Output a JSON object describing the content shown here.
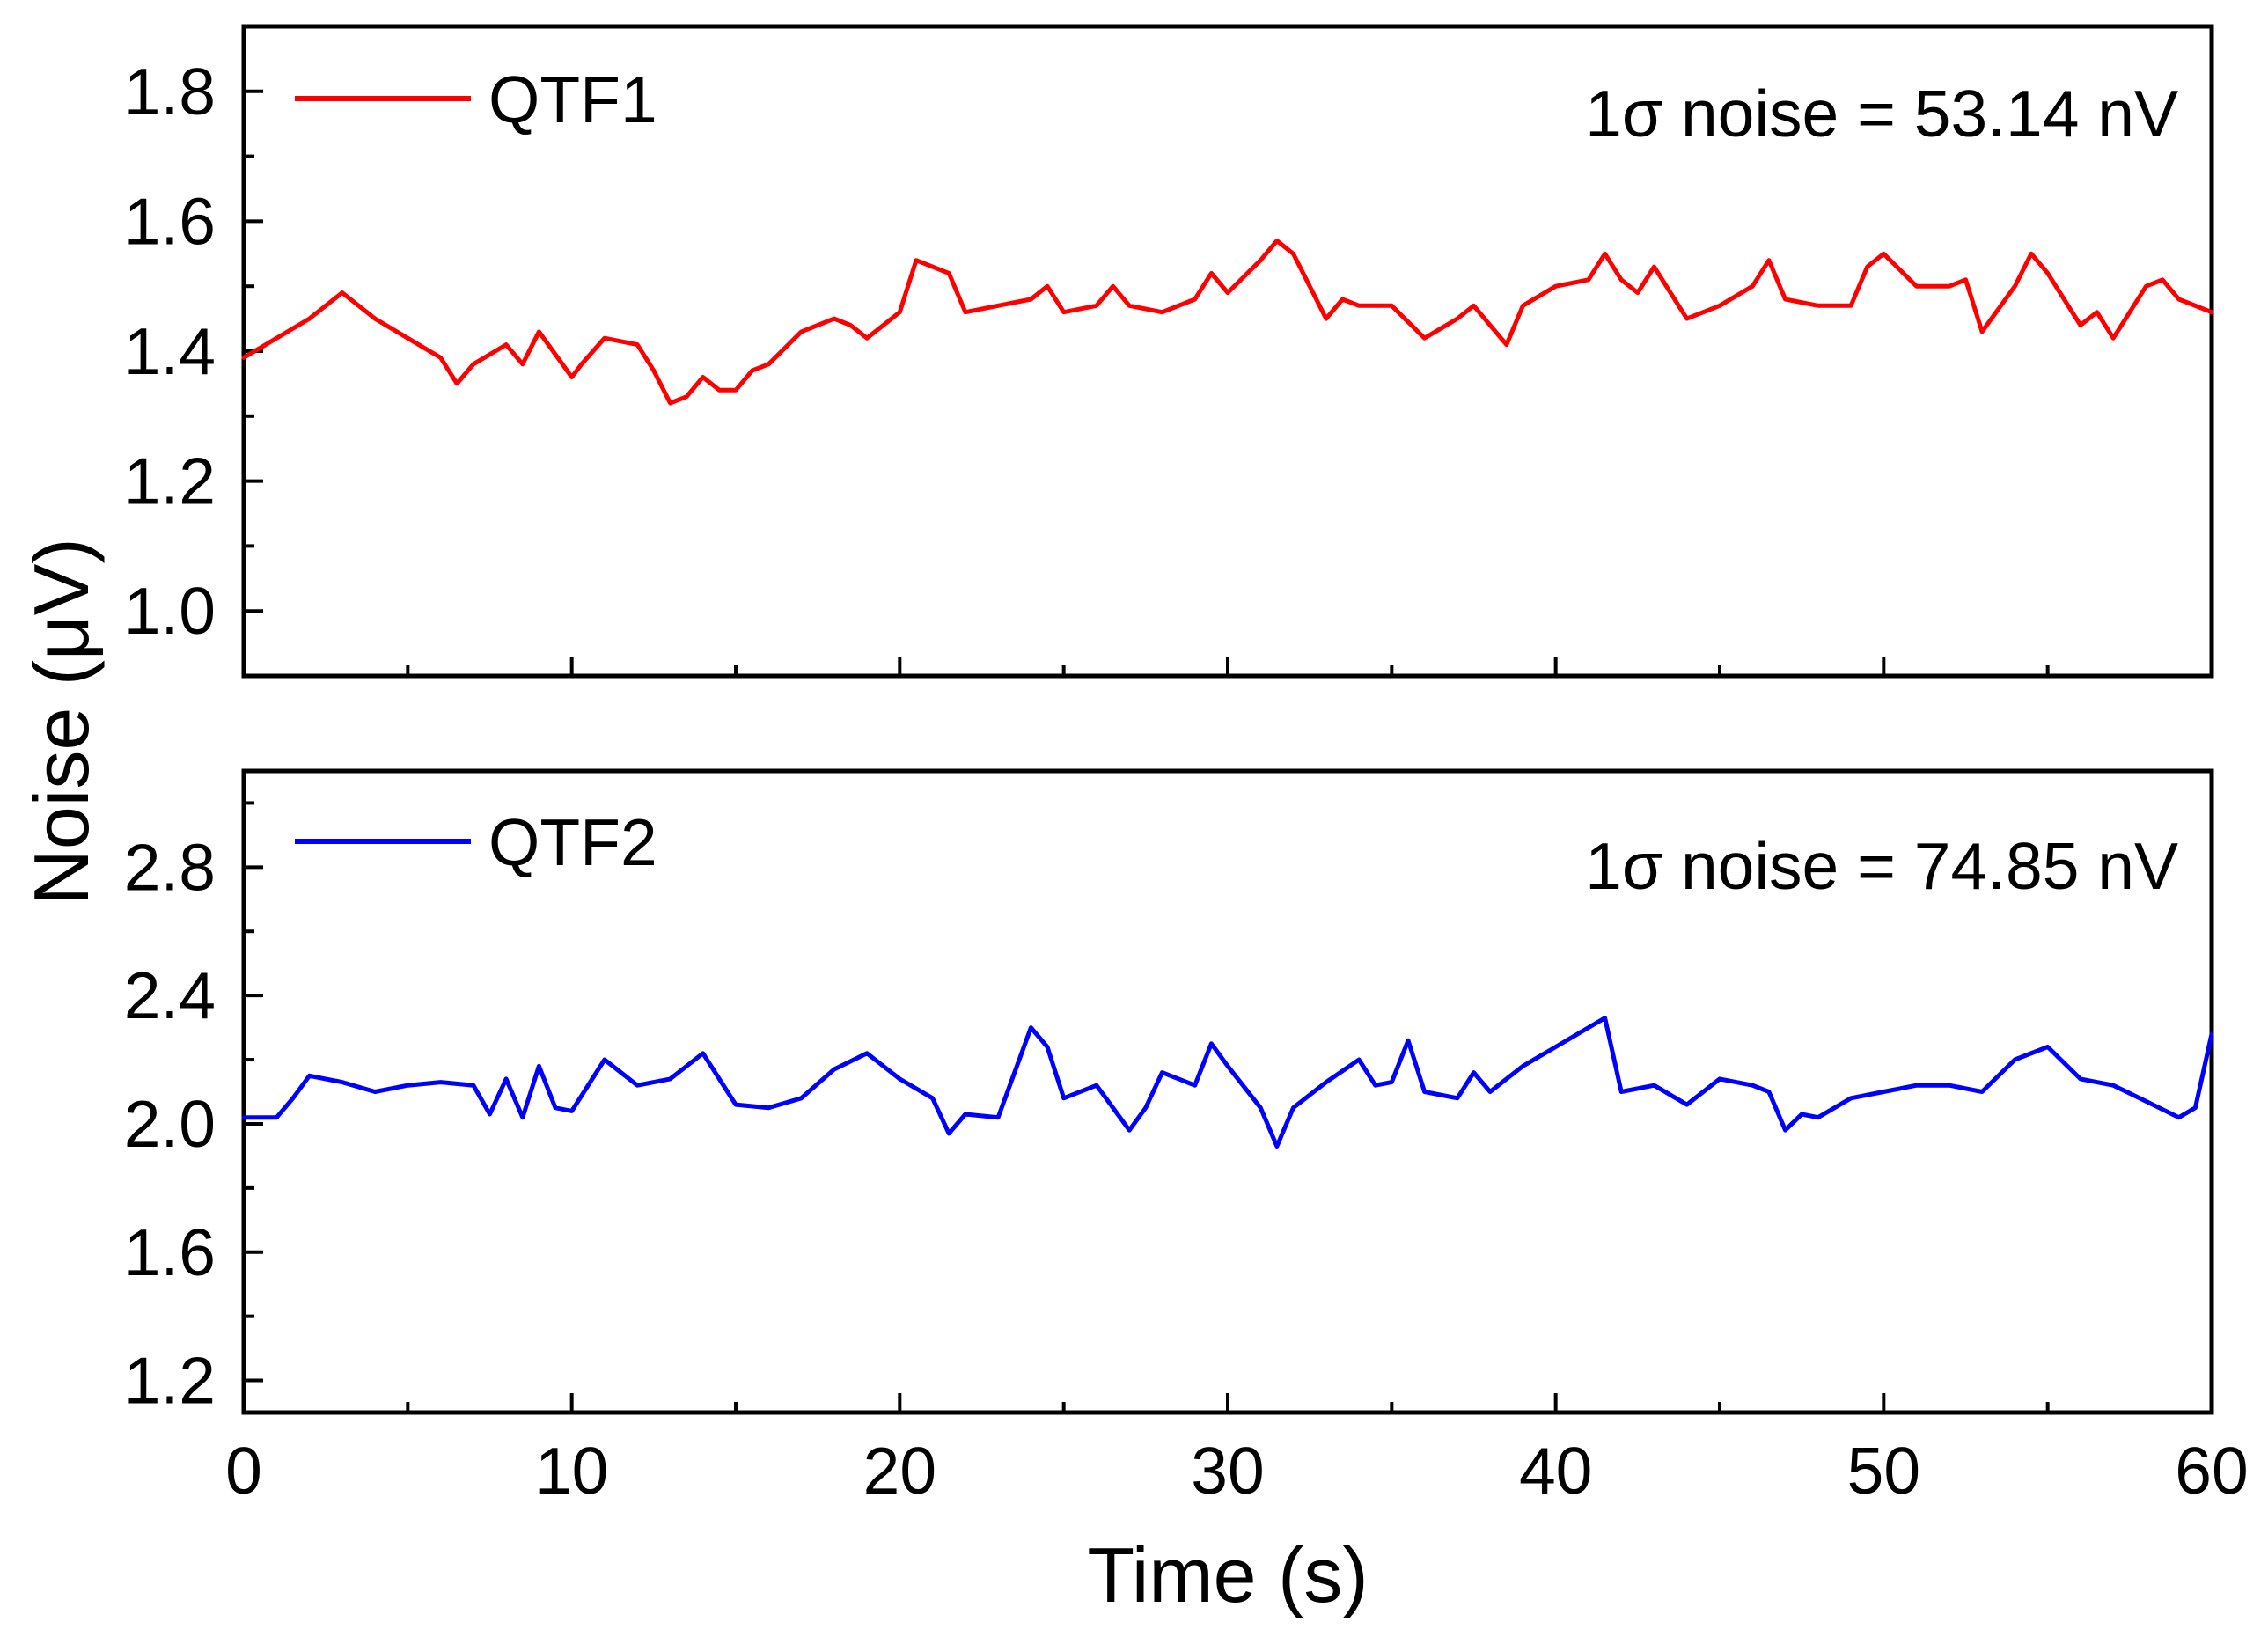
{
  "chart_data": [
    {
      "type": "line",
      "xlabel": "Time (s)",
      "ylabel": "Noise (μV)",
      "xlim": [
        0,
        60
      ],
      "ylim": [
        0.9,
        1.9
      ],
      "xticks": [
        0,
        10,
        20,
        30,
        40,
        50,
        60
      ],
      "yticks": [
        1.0,
        1.2,
        1.4,
        1.6,
        1.8
      ],
      "ytick_labels": [
        "1.0",
        "1.2",
        "1.4",
        "1.6",
        "1.8"
      ],
      "show_x_tick_labels": false,
      "grid": false,
      "legend_placement": "top-left",
      "annotation": "1σ noise = 53.14 nV",
      "series": [
        {
          "name": "QTF1",
          "color": "#ff0000",
          "x": [
            0,
            1,
            2,
            3,
            4,
            5,
            6,
            6.5,
            7,
            8,
            8.5,
            9,
            10,
            10.3,
            11,
            12,
            12.5,
            13,
            13.5,
            14,
            14.5,
            15,
            15.5,
            16,
            17,
            18,
            18.5,
            19,
            20,
            20.5,
            21,
            21.5,
            22,
            23,
            24,
            24.5,
            25,
            26,
            26.5,
            27,
            28,
            29,
            29.5,
            30,
            31,
            31.5,
            32,
            33,
            33.5,
            34,
            35,
            36,
            37,
            37.5,
            38,
            38.5,
            39,
            40,
            41,
            41.5,
            42,
            42.5,
            43,
            44,
            45,
            46,
            46.5,
            47,
            48,
            49,
            49.5,
            50,
            51,
            52,
            52.5,
            53,
            54,
            54.5,
            55,
            56,
            56.5,
            57,
            58,
            58.5,
            59,
            60
          ],
          "values": [
            1.39,
            1.42,
            1.45,
            1.49,
            1.45,
            1.42,
            1.39,
            1.35,
            1.38,
            1.41,
            1.38,
            1.43,
            1.36,
            1.38,
            1.42,
            1.41,
            1.37,
            1.32,
            1.33,
            1.36,
            1.34,
            1.34,
            1.37,
            1.38,
            1.43,
            1.45,
            1.44,
            1.42,
            1.46,
            1.54,
            1.53,
            1.52,
            1.46,
            1.47,
            1.48,
            1.5,
            1.46,
            1.47,
            1.5,
            1.47,
            1.46,
            1.48,
            1.52,
            1.49,
            1.54,
            1.57,
            1.55,
            1.45,
            1.48,
            1.47,
            1.47,
            1.42,
            1.45,
            1.47,
            1.44,
            1.41,
            1.47,
            1.5,
            1.51,
            1.55,
            1.51,
            1.49,
            1.53,
            1.45,
            1.47,
            1.5,
            1.54,
            1.48,
            1.47,
            1.47,
            1.53,
            1.55,
            1.5,
            1.5,
            1.51,
            1.43,
            1.5,
            1.55,
            1.52,
            1.44,
            1.46,
            1.42,
            1.5,
            1.51,
            1.48,
            1.46
          ]
        }
      ]
    },
    {
      "type": "line",
      "xlabel": "Time (s)",
      "ylabel": "Noise (μV)",
      "xlim": [
        0,
        60
      ],
      "ylim": [
        1.1,
        3.1
      ],
      "xticks": [
        0,
        10,
        20,
        30,
        40,
        50,
        60
      ],
      "yticks": [
        1.2,
        1.6,
        2.0,
        2.4,
        2.8
      ],
      "ytick_labels": [
        "1.2",
        "1.6",
        "2.0",
        "2.4",
        "2.8"
      ],
      "show_x_tick_labels": true,
      "grid": false,
      "legend_placement": "top-left",
      "annotation": "1σ noise = 74.85 nV",
      "series": [
        {
          "name": "QTF2",
          "color": "#0000ff",
          "x": [
            0,
            0.5,
            1,
            1.5,
            2,
            3,
            4,
            5,
            6,
            7,
            7.5,
            8,
            8.5,
            9,
            9.5,
            10,
            11,
            12,
            13,
            14,
            15,
            16,
            17,
            18,
            19,
            20,
            21,
            21.5,
            22,
            23,
            24,
            24.5,
            25,
            26,
            27,
            27.5,
            28,
            29,
            29.5,
            30,
            31,
            31.5,
            32,
            33,
            34,
            34.5,
            35,
            35.5,
            36,
            37,
            37.5,
            38,
            39,
            40,
            41,
            41.5,
            42,
            43,
            44,
            45,
            46,
            46.5,
            47,
            47.5,
            48,
            49,
            50,
            51,
            52,
            53,
            54,
            55,
            56,
            57,
            58,
            59,
            59.5,
            60
          ],
          "values": [
            2.02,
            2.02,
            2.02,
            2.08,
            2.15,
            2.13,
            2.1,
            2.12,
            2.13,
            2.12,
            2.03,
            2.14,
            2.02,
            2.18,
            2.05,
            2.04,
            2.2,
            2.12,
            2.14,
            2.22,
            2.06,
            2.05,
            2.08,
            2.17,
            2.22,
            2.14,
            2.08,
            1.97,
            2.03,
            2.02,
            2.3,
            2.24,
            2.08,
            2.12,
            1.98,
            2.05,
            2.16,
            2.12,
            2.25,
            2.18,
            2.05,
            1.93,
            2.05,
            2.13,
            2.2,
            2.12,
            2.13,
            2.26,
            2.1,
            2.08,
            2.16,
            2.1,
            2.18,
            2.24,
            2.3,
            2.33,
            2.1,
            2.12,
            2.06,
            2.14,
            2.12,
            2.1,
            1.98,
            2.03,
            2.02,
            2.08,
            2.1,
            2.12,
            2.12,
            2.1,
            2.2,
            2.24,
            2.14,
            2.12,
            2.07,
            2.02,
            2.05,
            2.28
          ]
        }
      ]
    }
  ]
}
